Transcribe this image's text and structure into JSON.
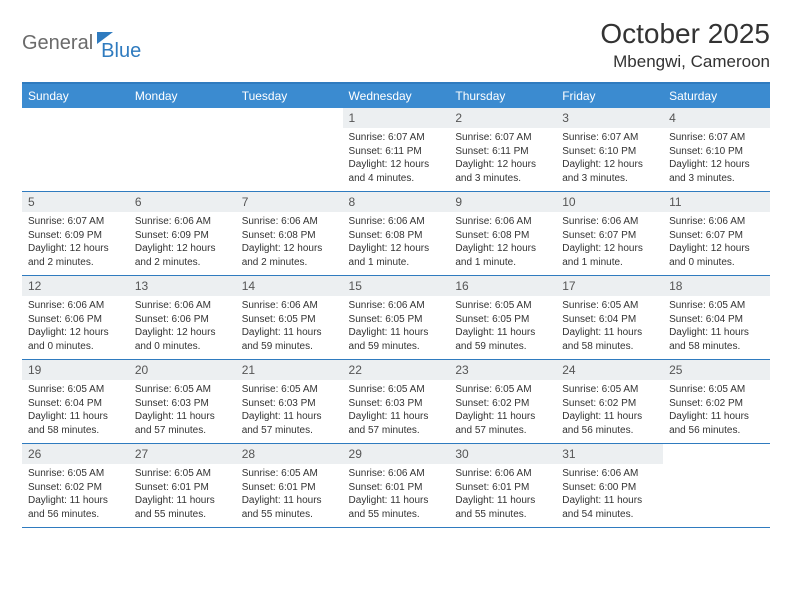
{
  "logo": {
    "word1": "General",
    "word2": "Blue"
  },
  "title": "October 2025",
  "location": "Mbengwi, Cameroon",
  "days_of_week": [
    "Sunday",
    "Monday",
    "Tuesday",
    "Wednesday",
    "Thursday",
    "Friday",
    "Saturday"
  ],
  "colors": {
    "header_bg": "#3b8bd0",
    "header_border": "#2f7bbf",
    "daynum_bg": "#eceff1",
    "text": "#333333",
    "logo_gray": "#6a6a6a",
    "logo_blue": "#2f7bbf"
  },
  "weeks": [
    [
      null,
      null,
      null,
      {
        "n": "1",
        "sunrise": "6:07 AM",
        "sunset": "6:11 PM",
        "daylight": "12 hours and 4 minutes."
      },
      {
        "n": "2",
        "sunrise": "6:07 AM",
        "sunset": "6:11 PM",
        "daylight": "12 hours and 3 minutes."
      },
      {
        "n": "3",
        "sunrise": "6:07 AM",
        "sunset": "6:10 PM",
        "daylight": "12 hours and 3 minutes."
      },
      {
        "n": "4",
        "sunrise": "6:07 AM",
        "sunset": "6:10 PM",
        "daylight": "12 hours and 3 minutes."
      }
    ],
    [
      {
        "n": "5",
        "sunrise": "6:07 AM",
        "sunset": "6:09 PM",
        "daylight": "12 hours and 2 minutes."
      },
      {
        "n": "6",
        "sunrise": "6:06 AM",
        "sunset": "6:09 PM",
        "daylight": "12 hours and 2 minutes."
      },
      {
        "n": "7",
        "sunrise": "6:06 AM",
        "sunset": "6:08 PM",
        "daylight": "12 hours and 2 minutes."
      },
      {
        "n": "8",
        "sunrise": "6:06 AM",
        "sunset": "6:08 PM",
        "daylight": "12 hours and 1 minute."
      },
      {
        "n": "9",
        "sunrise": "6:06 AM",
        "sunset": "6:08 PM",
        "daylight": "12 hours and 1 minute."
      },
      {
        "n": "10",
        "sunrise": "6:06 AM",
        "sunset": "6:07 PM",
        "daylight": "12 hours and 1 minute."
      },
      {
        "n": "11",
        "sunrise": "6:06 AM",
        "sunset": "6:07 PM",
        "daylight": "12 hours and 0 minutes."
      }
    ],
    [
      {
        "n": "12",
        "sunrise": "6:06 AM",
        "sunset": "6:06 PM",
        "daylight": "12 hours and 0 minutes."
      },
      {
        "n": "13",
        "sunrise": "6:06 AM",
        "sunset": "6:06 PM",
        "daylight": "12 hours and 0 minutes."
      },
      {
        "n": "14",
        "sunrise": "6:06 AM",
        "sunset": "6:05 PM",
        "daylight": "11 hours and 59 minutes."
      },
      {
        "n": "15",
        "sunrise": "6:06 AM",
        "sunset": "6:05 PM",
        "daylight": "11 hours and 59 minutes."
      },
      {
        "n": "16",
        "sunrise": "6:05 AM",
        "sunset": "6:05 PM",
        "daylight": "11 hours and 59 minutes."
      },
      {
        "n": "17",
        "sunrise": "6:05 AM",
        "sunset": "6:04 PM",
        "daylight": "11 hours and 58 minutes."
      },
      {
        "n": "18",
        "sunrise": "6:05 AM",
        "sunset": "6:04 PM",
        "daylight": "11 hours and 58 minutes."
      }
    ],
    [
      {
        "n": "19",
        "sunrise": "6:05 AM",
        "sunset": "6:04 PM",
        "daylight": "11 hours and 58 minutes."
      },
      {
        "n": "20",
        "sunrise": "6:05 AM",
        "sunset": "6:03 PM",
        "daylight": "11 hours and 57 minutes."
      },
      {
        "n": "21",
        "sunrise": "6:05 AM",
        "sunset": "6:03 PM",
        "daylight": "11 hours and 57 minutes."
      },
      {
        "n": "22",
        "sunrise": "6:05 AM",
        "sunset": "6:03 PM",
        "daylight": "11 hours and 57 minutes."
      },
      {
        "n": "23",
        "sunrise": "6:05 AM",
        "sunset": "6:02 PM",
        "daylight": "11 hours and 57 minutes."
      },
      {
        "n": "24",
        "sunrise": "6:05 AM",
        "sunset": "6:02 PM",
        "daylight": "11 hours and 56 minutes."
      },
      {
        "n": "25",
        "sunrise": "6:05 AM",
        "sunset": "6:02 PM",
        "daylight": "11 hours and 56 minutes."
      }
    ],
    [
      {
        "n": "26",
        "sunrise": "6:05 AM",
        "sunset": "6:02 PM",
        "daylight": "11 hours and 56 minutes."
      },
      {
        "n": "27",
        "sunrise": "6:05 AM",
        "sunset": "6:01 PM",
        "daylight": "11 hours and 55 minutes."
      },
      {
        "n": "28",
        "sunrise": "6:05 AM",
        "sunset": "6:01 PM",
        "daylight": "11 hours and 55 minutes."
      },
      {
        "n": "29",
        "sunrise": "6:06 AM",
        "sunset": "6:01 PM",
        "daylight": "11 hours and 55 minutes."
      },
      {
        "n": "30",
        "sunrise": "6:06 AM",
        "sunset": "6:01 PM",
        "daylight": "11 hours and 55 minutes."
      },
      {
        "n": "31",
        "sunrise": "6:06 AM",
        "sunset": "6:00 PM",
        "daylight": "11 hours and 54 minutes."
      },
      null
    ]
  ],
  "labels": {
    "sunrise": "Sunrise: ",
    "sunset": "Sunset: ",
    "daylight": "Daylight: "
  }
}
